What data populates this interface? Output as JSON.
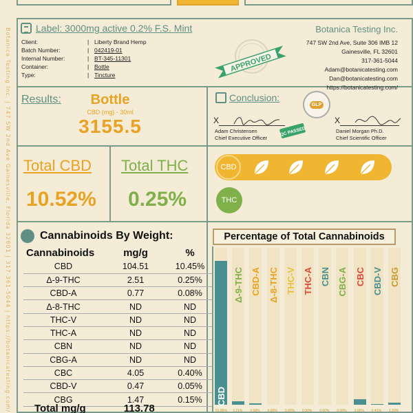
{
  "side_text": "Botanica Testing Inc. | 747 SW 2nd Ave Gainesville, Florida 32601 | 317-361-5044 | https://botanicatesting.com/",
  "label": {
    "title": "Label: 3000mg active 0.2% F.S. Mint",
    "fields": [
      {
        "key": "Client:",
        "value": "Liberty Brand Hemp",
        "underline": false
      },
      {
        "key": "Batch Number:",
        "value": "042419-01",
        "underline": true
      },
      {
        "key": "Internal Number:",
        "value": "BT-345-11301",
        "underline": true
      },
      {
        "key": "Container:",
        "value": "Bottle",
        "underline": true
      },
      {
        "key": "Type:",
        "value": "Tincture",
        "underline": true
      }
    ],
    "stamp_text": "APPROVED"
  },
  "company": {
    "name": "Botanica Testing Inc.",
    "lines": [
      "747 SW 2nd Ave, Suite 306 IMB 12",
      "Gainesville, FL 32601",
      "317-361-5044",
      "Adam@botanicatesting.com",
      "Dan@botanicatesting.com",
      "https://botanicatesting.com/"
    ]
  },
  "results": {
    "label": "Results:",
    "container": "Bottle",
    "unit": "CBD (mg) - 30ml",
    "value": "3155.5"
  },
  "conclusion": {
    "title": "Conclusion:",
    "glp_badge": "GLP",
    "qc_badge": "QC PASSED",
    "signer1": {
      "name": "Adam Christensen",
      "title": "Chief Executive Officer"
    },
    "signer2": {
      "name": "Daniel Morgan Ph.D.",
      "title": "Chief Scientific Officer"
    }
  },
  "totals": {
    "cbd_label": "Total CBD",
    "thc_label": "Total THC",
    "cbd_value": "10.52%",
    "thc_value": "0.25%",
    "cbd_badge": "CBD",
    "thc_badge": "THC"
  },
  "weight_table": {
    "title": "Cannabinoids By Weight:",
    "headers": [
      "Cannabinoids",
      "mg/g",
      "%"
    ],
    "rows": [
      [
        "CBD",
        "104.51",
        "10.45%"
      ],
      [
        "Δ-9-THC",
        "2.51",
        "0.25%"
      ],
      [
        "CBD-A",
        "0.77",
        "0.08%"
      ],
      [
        "Δ-8-THC",
        "ND",
        "ND"
      ],
      [
        "THC-V",
        "ND",
        "ND"
      ],
      [
        "THC-A",
        "ND",
        "ND"
      ],
      [
        "CBN",
        "ND",
        "ND"
      ],
      [
        "CBG-A",
        "ND",
        "ND"
      ],
      [
        "CBC",
        "4.05",
        "0.40%"
      ],
      [
        "CBD-V",
        "0.47",
        "0.05%"
      ],
      [
        "CBG",
        "1.47",
        "0.15%"
      ]
    ],
    "total_label": "Total mg/g",
    "total_value": "113.78"
  },
  "colors": {
    "teal": "#4a8f8f",
    "orange": "#e8a324",
    "green": "#7fb04a",
    "red": "#d94a3a"
  },
  "chart_data": {
    "type": "bar",
    "title": "Percentage of Total Cannabinoids",
    "categories": [
      "CBD",
      "Δ-9-THC",
      "CBD-A",
      "Δ-8-THC",
      "THC-V",
      "THC-A",
      "CBN",
      "CBG-A",
      "CBC",
      "CBD-V",
      "CBG"
    ],
    "values": [
      91.85,
      2.21,
      0.68,
      0,
      0,
      0,
      0,
      0,
      3.56,
      0.41,
      1.29
    ],
    "value_labels": [
      "91.85%",
      "2.21%",
      "0.68%",
      "0.00%",
      "0.00%",
      "0.00%",
      "0.00%",
      "0.00%",
      "3.56%",
      "0.41%",
      "1.29%"
    ],
    "label_colors": [
      "#ffffff",
      "#7fb04a",
      "#e8a324",
      "#e8a324",
      "#e8c040",
      "#d94a3a",
      "#4a8f8f",
      "#7fb04a",
      "#d94a3a",
      "#4a8f8f",
      "#c79a30"
    ],
    "bar_color": "#4a8f8f",
    "band_color": "#f0e4c4",
    "ylim": [
      0,
      100
    ]
  }
}
